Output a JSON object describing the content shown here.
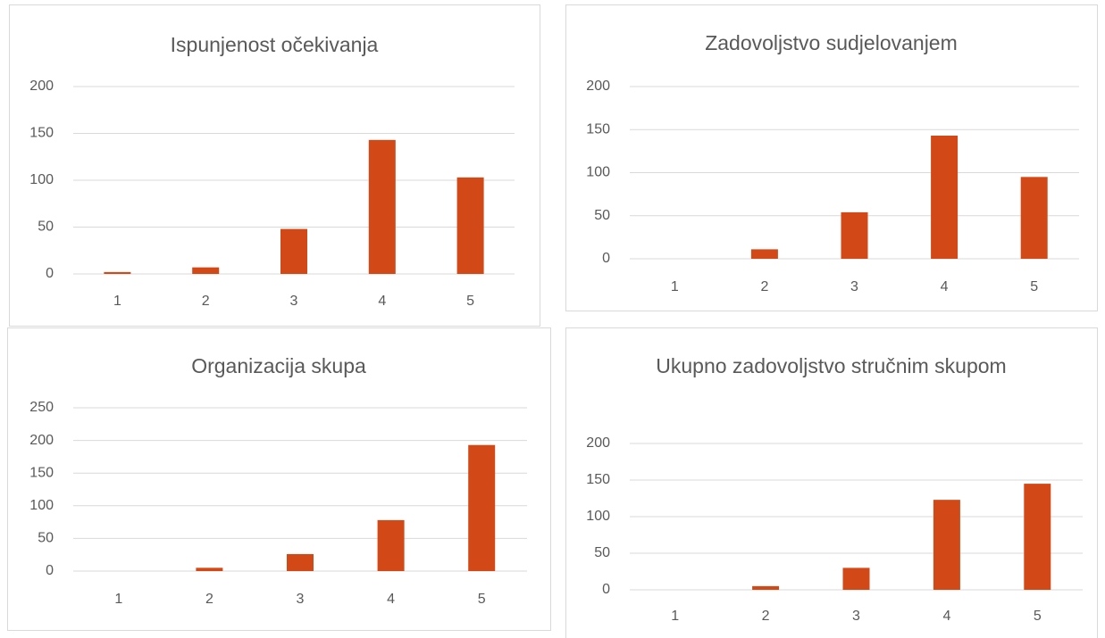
{
  "chart_data": [
    {
      "type": "bar",
      "title": "Ispunjenost očekivanja",
      "categories": [
        "1",
        "2",
        "3",
        "4",
        "5"
      ],
      "values": [
        2,
        7,
        48,
        143,
        103
      ],
      "color": "#d34817",
      "ylim": [
        0,
        200
      ],
      "yticks": [
        0,
        50,
        100,
        150,
        200
      ],
      "grid": true
    },
    {
      "type": "bar",
      "title": "Zadovoljstvo sudjelovanjem",
      "categories": [
        "1",
        "2",
        "3",
        "4",
        "5"
      ],
      "values": [
        0,
        11,
        54,
        143,
        95
      ],
      "color": "#d34817",
      "ylim": [
        0,
        200
      ],
      "yticks": [
        0,
        50,
        100,
        150,
        200
      ],
      "grid": true
    },
    {
      "type": "bar",
      "title": "Organizacija skupa",
      "categories": [
        "1",
        "2",
        "3",
        "4",
        "5"
      ],
      "values": [
        0,
        5,
        26,
        78,
        193
      ],
      "color": "#d34817",
      "ylim": [
        0,
        250
      ],
      "yticks": [
        0,
        50,
        100,
        150,
        200,
        250
      ],
      "grid": true
    },
    {
      "type": "bar",
      "title": "Ukupno zadovoljstvo stručnim skupom",
      "categories": [
        "1",
        "2",
        "3",
        "4",
        "5"
      ],
      "values": [
        0,
        5,
        30,
        123,
        145
      ],
      "color": "#d34817",
      "ylim": [
        0,
        200
      ],
      "yticks": [
        0,
        50,
        100,
        150,
        200
      ],
      "grid": true
    }
  ]
}
